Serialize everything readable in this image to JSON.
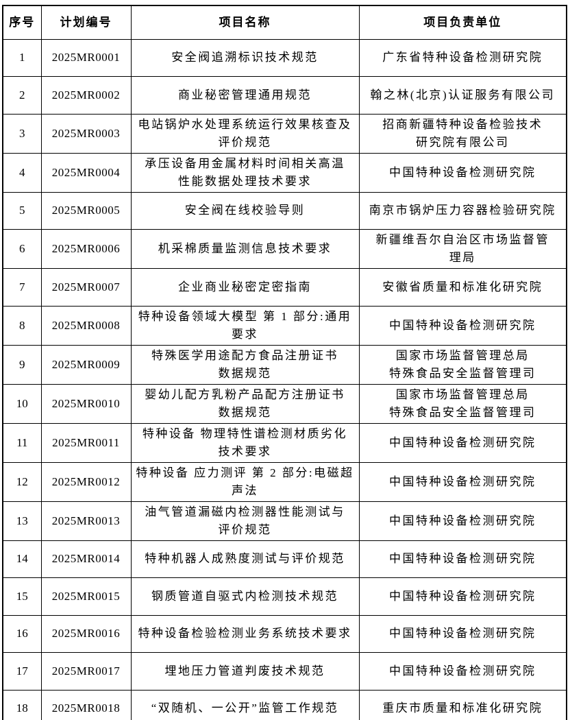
{
  "table": {
    "headers": [
      "序号",
      "计划编号",
      "项目名称",
      "项目负责单位"
    ],
    "rows": [
      {
        "no": "1",
        "code": "2025MR0001",
        "name": "安全阀追溯标识技术规范",
        "unit": "广东省特种设备检测研究院"
      },
      {
        "no": "2",
        "code": "2025MR0002",
        "name": "商业秘密管理通用规范",
        "unit": "翰之林(北京)认证服务有限公司"
      },
      {
        "no": "3",
        "code": "2025MR0003",
        "name": "电站锅炉水处理系统运行效果核查及\n评价规范",
        "unit": "招商新疆特种设备检验技术\n研究院有限公司"
      },
      {
        "no": "4",
        "code": "2025MR0004",
        "name": "承压设备用金属材料时间相关高温\n性能数据处理技术要求",
        "unit": "中国特种设备检测研究院"
      },
      {
        "no": "5",
        "code": "2025MR0005",
        "name": "安全阀在线校验导则",
        "unit": "南京市锅炉压力容器检验研究院"
      },
      {
        "no": "6",
        "code": "2025MR0006",
        "name": "机采棉质量监测信息技术要求",
        "unit": "新疆维吾尔自治区市场监督管\n理局"
      },
      {
        "no": "7",
        "code": "2025MR0007",
        "name": "企业商业秘密定密指南",
        "unit": "安徽省质量和标准化研究院"
      },
      {
        "no": "8",
        "code": "2025MR0008",
        "name": "特种设备领域大模型 第 1 部分:通用\n要求",
        "unit": "中国特种设备检测研究院"
      },
      {
        "no": "9",
        "code": "2025MR0009",
        "name": "特殊医学用途配方食品注册证书\n数据规范",
        "unit": "国家市场监督管理总局\n特殊食品安全监督管理司"
      },
      {
        "no": "10",
        "code": "2025MR0010",
        "name": "婴幼儿配方乳粉产品配方注册证书\n数据规范",
        "unit": "国家市场监督管理总局\n特殊食品安全监督管理司"
      },
      {
        "no": "11",
        "code": "2025MR0011",
        "name": "特种设备 物理特性谱检测材质劣化\n技术要求",
        "unit": "中国特种设备检测研究院"
      },
      {
        "no": "12",
        "code": "2025MR0012",
        "name": "特种设备 应力测评 第 2 部分:电磁超\n声法",
        "unit": "中国特种设备检测研究院"
      },
      {
        "no": "13",
        "code": "2025MR0013",
        "name": "油气管道漏磁内检测器性能测试与\n评价规范",
        "unit": "中国特种设备检测研究院"
      },
      {
        "no": "14",
        "code": "2025MR0014",
        "name": "特种机器人成熟度测试与评价规范",
        "unit": "中国特种设备检测研究院"
      },
      {
        "no": "15",
        "code": "2025MR0015",
        "name": "钢质管道自驱式内检测技术规范",
        "unit": "中国特种设备检测研究院"
      },
      {
        "no": "16",
        "code": "2025MR0016",
        "name": "特种设备检验检测业务系统技术要求",
        "unit": "中国特种设备检测研究院"
      },
      {
        "no": "17",
        "code": "2025MR0017",
        "name": "埋地压力管道判废技术规范",
        "unit": "中国特种设备检测研究院"
      },
      {
        "no": "18",
        "code": "2025MR0018",
        "name": "“双随机、一公开”监管工作规范",
        "unit": "重庆市质量和标准化研究院"
      }
    ]
  }
}
